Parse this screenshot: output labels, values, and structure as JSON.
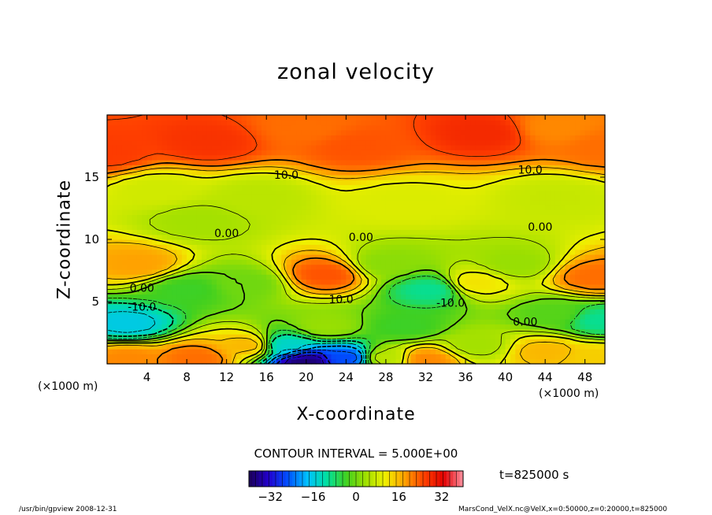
{
  "chart_data": {
    "type": "heatmap",
    "title": "zonal velocity",
    "xlabel": "X-coordinate",
    "ylabel": "Z-coordinate",
    "x_unit_left": "(×1000 m)",
    "x_unit_right": "(×1000 m)",
    "xlim": [
      0,
      50
    ],
    "ylim": [
      0,
      20
    ],
    "x_ticks": [
      4,
      8,
      12,
      16,
      20,
      24,
      28,
      32,
      36,
      40,
      44,
      48
    ],
    "y_ticks": [
      5,
      10,
      15
    ],
    "contour_interval": "CONTOUR INTERVAL = 5.000E+00",
    "time_label": "t=825000 s",
    "colorbar": {
      "range": [
        -40,
        40
      ],
      "ticks": [
        -32,
        -16,
        0,
        16,
        32
      ],
      "colors": [
        "#1a0055",
        "#2200cc",
        "#0050ff",
        "#00c0ff",
        "#00e0a0",
        "#40d020",
        "#a0e000",
        "#f0f000",
        "#ffa000",
        "#ff4000",
        "#e00000",
        "#ff90a0"
      ]
    },
    "contour_labels": [
      {
        "text": "10.0",
        "x": 18,
        "y": 15.2
      },
      {
        "text": "10.0",
        "x": 42.5,
        "y": 15.6
      },
      {
        "text": "0.00",
        "x": 12,
        "y": 10.5
      },
      {
        "text": "0.00",
        "x": 25.5,
        "y": 10.2
      },
      {
        "text": "0.00",
        "x": 43.5,
        "y": 11.0
      },
      {
        "text": "0.00",
        "x": 3.5,
        "y": 6.1
      },
      {
        "text": "-10.0",
        "x": 3.5,
        "y": 4.6
      },
      {
        "text": "10.0",
        "x": 23.5,
        "y": 5.2
      },
      {
        "text": "-10.0",
        "x": 34.5,
        "y": 4.9
      },
      {
        "text": "0.00",
        "x": 42,
        "y": 3.4
      }
    ],
    "field_centers": [
      {
        "x": 0,
        "y": 17,
        "v": 26
      },
      {
        "x": 10,
        "y": 17.8,
        "v": 27
      },
      {
        "x": 25,
        "y": 17.5,
        "v": 24
      },
      {
        "x": 38,
        "y": 18.6,
        "v": 28
      },
      {
        "x": 50,
        "y": 17.5,
        "v": 22
      },
      {
        "x": 20,
        "y": 19,
        "v": 22
      },
      {
        "x": 45,
        "y": 19,
        "v": 20
      },
      {
        "x": 5,
        "y": 14,
        "v": 8
      },
      {
        "x": 15,
        "y": 13.5,
        "v": 6
      },
      {
        "x": 30,
        "y": 13,
        "v": 9
      },
      {
        "x": 45,
        "y": 13.5,
        "v": 7
      },
      {
        "x": 3,
        "y": 8,
        "v": 18
      },
      {
        "x": 22,
        "y": 7.2,
        "v": 24
      },
      {
        "x": 49,
        "y": 7,
        "v": 22
      },
      {
        "x": 9,
        "y": 11.5,
        "v": 4
      },
      {
        "x": 8,
        "y": 6,
        "v": -4
      },
      {
        "x": 14,
        "y": 6.5,
        "v": 0
      },
      {
        "x": 28,
        "y": 8,
        "v": 2
      },
      {
        "x": 41,
        "y": 8,
        "v": 3
      },
      {
        "x": 32.5,
        "y": 6,
        "v": -10
      },
      {
        "x": 2,
        "y": 3.2,
        "v": -16
      },
      {
        "x": 37,
        "y": 6.5,
        "v": 12
      },
      {
        "x": 22,
        "y": 3,
        "v": 3
      },
      {
        "x": 30,
        "y": 3,
        "v": -4
      },
      {
        "x": 45,
        "y": 4,
        "v": -2
      },
      {
        "x": 2,
        "y": 0.5,
        "v": 20
      },
      {
        "x": 9,
        "y": 0.5,
        "v": 22
      },
      {
        "x": 14,
        "y": 1.5,
        "v": 16
      },
      {
        "x": 20,
        "y": 0.2,
        "v": -38
      },
      {
        "x": 24,
        "y": 0.5,
        "v": -26
      },
      {
        "x": 18,
        "y": 1.5,
        "v": -14
      },
      {
        "x": 28,
        "y": 0.5,
        "v": 6
      },
      {
        "x": 32,
        "y": 0.4,
        "v": 20
      },
      {
        "x": 37,
        "y": 1.5,
        "v": 4
      },
      {
        "x": 44,
        "y": 1.0,
        "v": 16
      },
      {
        "x": 49.5,
        "y": 3.5,
        "v": -10
      },
      {
        "x": 49,
        "y": 0.5,
        "v": 14
      }
    ]
  },
  "footer": {
    "left": "/usr/bin/gpview   2008-12-31",
    "right": "MarsCond_VelX.nc@VelX,x=0:50000,z=0:20000,t=825000"
  }
}
